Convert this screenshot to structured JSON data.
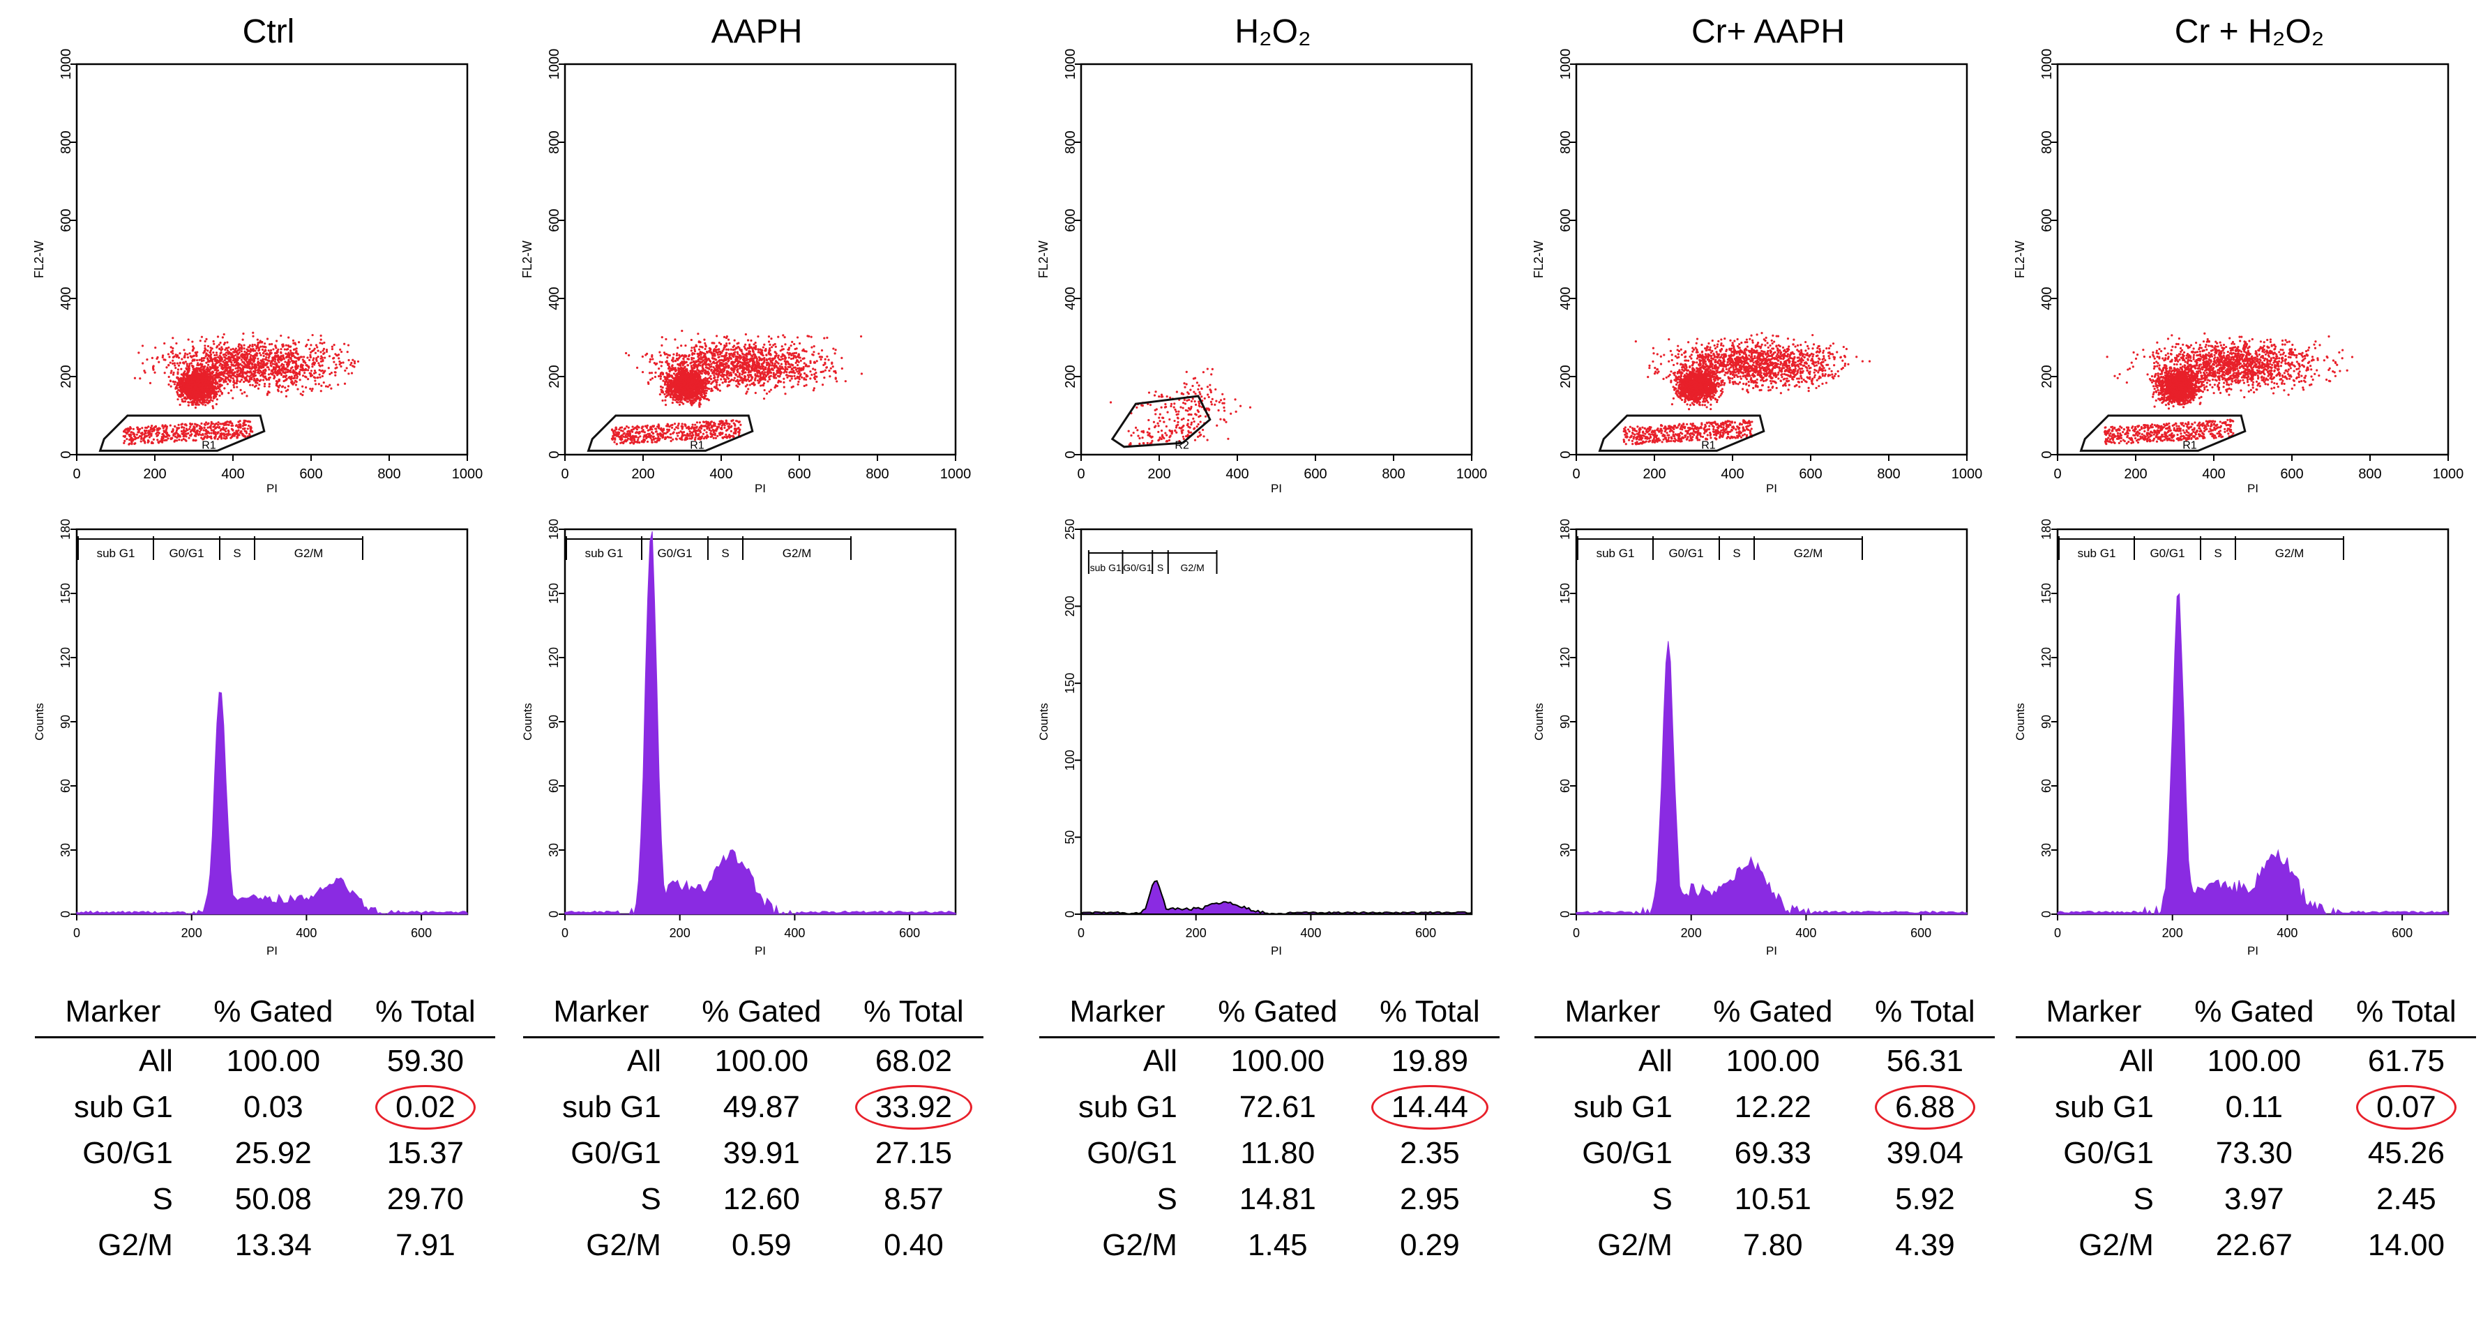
{
  "chart_data": [
    {
      "type": "table",
      "title": "Ctrl",
      "scatter": {
        "xlabel": "PI",
        "ylabel": "FL2-W",
        "xlim": [
          0,
          1000
        ],
        "ylim": [
          0,
          1000
        ],
        "xticks": [
          "0",
          "200",
          "400",
          "600",
          "800",
          "1000"
        ],
        "yticks": [
          "0",
          "200",
          "400",
          "600",
          "800",
          "1000"
        ],
        "gate_label": "R1"
      },
      "histogram": {
        "xlabel": "PI",
        "ylabel": "Counts",
        "xlim": [
          0,
          680
        ],
        "ylim": [
          0,
          180
        ],
        "xticks": [
          "0",
          "200",
          "400",
          "600"
        ],
        "yticks": [
          "0",
          "30",
          "60",
          "90",
          "120",
          "150",
          "180"
        ],
        "markers": [
          "sub G1",
          "G0/G1",
          "S",
          "G2/M"
        ],
        "peaks": [
          {
            "x": 250,
            "count": 105
          },
          {
            "x": 450,
            "count": 16
          }
        ]
      },
      "columns": [
        "Marker",
        "% Gated",
        "% Total"
      ],
      "rows": [
        [
          "All",
          "100.00",
          "59.30"
        ],
        [
          "sub G1",
          "0.03",
          "0.02"
        ],
        [
          "G0/G1",
          "25.92",
          "15.37"
        ],
        [
          "S",
          "50.08",
          "29.70"
        ],
        [
          "G2/M",
          "13.34",
          "7.91"
        ]
      ],
      "highlight": "sub G1 % Total"
    },
    {
      "type": "table",
      "title": "AAPH",
      "scatter": {
        "xlabel": "PI",
        "ylabel": "FL2-W",
        "xlim": [
          0,
          1000
        ],
        "ylim": [
          0,
          1000
        ],
        "xticks": [
          "0",
          "200",
          "400",
          "600",
          "800",
          "1000"
        ],
        "yticks": [
          "0",
          "200",
          "400",
          "600",
          "800",
          "1000"
        ],
        "gate_label": "R1"
      },
      "histogram": {
        "xlabel": "PI",
        "ylabel": "Counts",
        "xlim": [
          0,
          680
        ],
        "ylim": [
          0,
          180
        ],
        "xticks": [
          "0",
          "200",
          "400",
          "600"
        ],
        "yticks": [
          "0",
          "30",
          "60",
          "90",
          "120",
          "150",
          "180"
        ],
        "markers": [
          "sub G1",
          "G0/G1",
          "S",
          "G2/M"
        ],
        "peaks": [
          {
            "x": 150,
            "count": 180
          },
          {
            "x": 290,
            "count": 28
          }
        ]
      },
      "columns": [
        "Marker",
        "% Gated",
        "% Total"
      ],
      "rows": [
        [
          "All",
          "100.00",
          "68.02"
        ],
        [
          "sub G1",
          "49.87",
          "33.92"
        ],
        [
          "G0/G1",
          "39.91",
          "27.15"
        ],
        [
          "S",
          "12.60",
          "8.57"
        ],
        [
          "G2/M",
          "0.59",
          "0.40"
        ]
      ],
      "highlight": "sub G1 % Total"
    },
    {
      "type": "table",
      "title": "H₂O₂",
      "scatter": {
        "xlabel": "PI",
        "ylabel": "FL2-W",
        "xlim": [
          0,
          1000
        ],
        "ylim": [
          0,
          1000
        ],
        "xticks": [
          "0",
          "200",
          "400",
          "600",
          "800",
          "1000"
        ],
        "yticks": [
          "0",
          "200",
          "400",
          "600",
          "800",
          "1000"
        ],
        "gate_label": "R2"
      },
      "histogram": {
        "xlabel": "PI",
        "ylabel": "Counts",
        "xlim": [
          0,
          680
        ],
        "ylim": [
          0,
          250
        ],
        "xticks": [
          "0",
          "200",
          "400",
          "600"
        ],
        "yticks": [
          "0",
          "50",
          "100",
          "150",
          "200",
          "250"
        ],
        "markers": [
          "sub G1",
          "G0/G1",
          "S",
          "G2/M"
        ],
        "peaks": [
          {
            "x": 130,
            "count": 22
          },
          {
            "x": 250,
            "count": 8
          }
        ]
      },
      "columns": [
        "Marker",
        "% Gated",
        "% Total"
      ],
      "rows": [
        [
          "All",
          "100.00",
          "19.89"
        ],
        [
          "sub G1",
          "72.61",
          "14.44"
        ],
        [
          "G0/G1",
          "11.80",
          "2.35"
        ],
        [
          "S",
          "14.81",
          "2.95"
        ],
        [
          "G2/M",
          "1.45",
          "0.29"
        ]
      ],
      "highlight": "sub G1 % Total"
    },
    {
      "type": "table",
      "title": "Cr+ AAPH",
      "scatter": {
        "xlabel": "PI",
        "ylabel": "FL2-W",
        "xlim": [
          0,
          1000
        ],
        "ylim": [
          0,
          1000
        ],
        "xticks": [
          "0",
          "200",
          "400",
          "600",
          "800",
          "1000"
        ],
        "yticks": [
          "0",
          "200",
          "400",
          "600",
          "800",
          "1000"
        ],
        "gate_label": "R1"
      },
      "histogram": {
        "xlabel": "PI",
        "ylabel": "Counts",
        "xlim": [
          0,
          680
        ],
        "ylim": [
          0,
          180
        ],
        "xticks": [
          "0",
          "200",
          "400",
          "600"
        ],
        "yticks": [
          "0",
          "30",
          "60",
          "90",
          "120",
          "150",
          "180"
        ],
        "markers": [
          "sub G1",
          "G0/G1",
          "S",
          "G2/M"
        ],
        "peaks": [
          {
            "x": 160,
            "count": 125
          },
          {
            "x": 300,
            "count": 25
          }
        ]
      },
      "columns": [
        "Marker",
        "% Gated",
        "% Total"
      ],
      "rows": [
        [
          "All",
          "100.00",
          "56.31"
        ],
        [
          "sub G1",
          "12.22",
          "6.88"
        ],
        [
          "G0/G1",
          "69.33",
          "39.04"
        ],
        [
          "S",
          "10.51",
          "5.92"
        ],
        [
          "G2/M",
          "7.80",
          "4.39"
        ]
      ],
      "highlight": "sub G1 % Total"
    },
    {
      "type": "table",
      "title": "Cr + H₂O₂",
      "scatter": {
        "xlabel": "PI",
        "ylabel": "FL2-W",
        "xlim": [
          0,
          1000
        ],
        "ylim": [
          0,
          1000
        ],
        "xticks": [
          "0",
          "200",
          "400",
          "600",
          "800",
          "1000"
        ],
        "yticks": [
          "0",
          "200",
          "400",
          "600",
          "800",
          "1000"
        ],
        "gate_label": "R1"
      },
      "histogram": {
        "xlabel": "PI",
        "ylabel": "Counts",
        "xlim": [
          0,
          680
        ],
        "ylim": [
          0,
          180
        ],
        "xticks": [
          "0",
          "200",
          "400",
          "600"
        ],
        "yticks": [
          "0",
          "30",
          "60",
          "90",
          "120",
          "150",
          "180"
        ],
        "markers": [
          "sub G1",
          "G0/G1",
          "S",
          "G2/M"
        ],
        "peaks": [
          {
            "x": 210,
            "count": 150
          },
          {
            "x": 380,
            "count": 28
          }
        ]
      },
      "columns": [
        "Marker",
        "% Gated",
        "% Total"
      ],
      "rows": [
        [
          "All",
          "100.00",
          "61.75"
        ],
        [
          "sub G1",
          "0.11",
          "0.07"
        ],
        [
          "G0/G1",
          "73.30",
          "45.26"
        ],
        [
          "S",
          "3.97",
          "2.45"
        ],
        [
          "G2/M",
          "22.67",
          "14.00"
        ]
      ],
      "highlight": "sub G1 % Total"
    }
  ],
  "colors": {
    "scatter": "#e8202a",
    "histogram_fill": "#8a2be2",
    "highlight_ring": "#e8202a"
  }
}
